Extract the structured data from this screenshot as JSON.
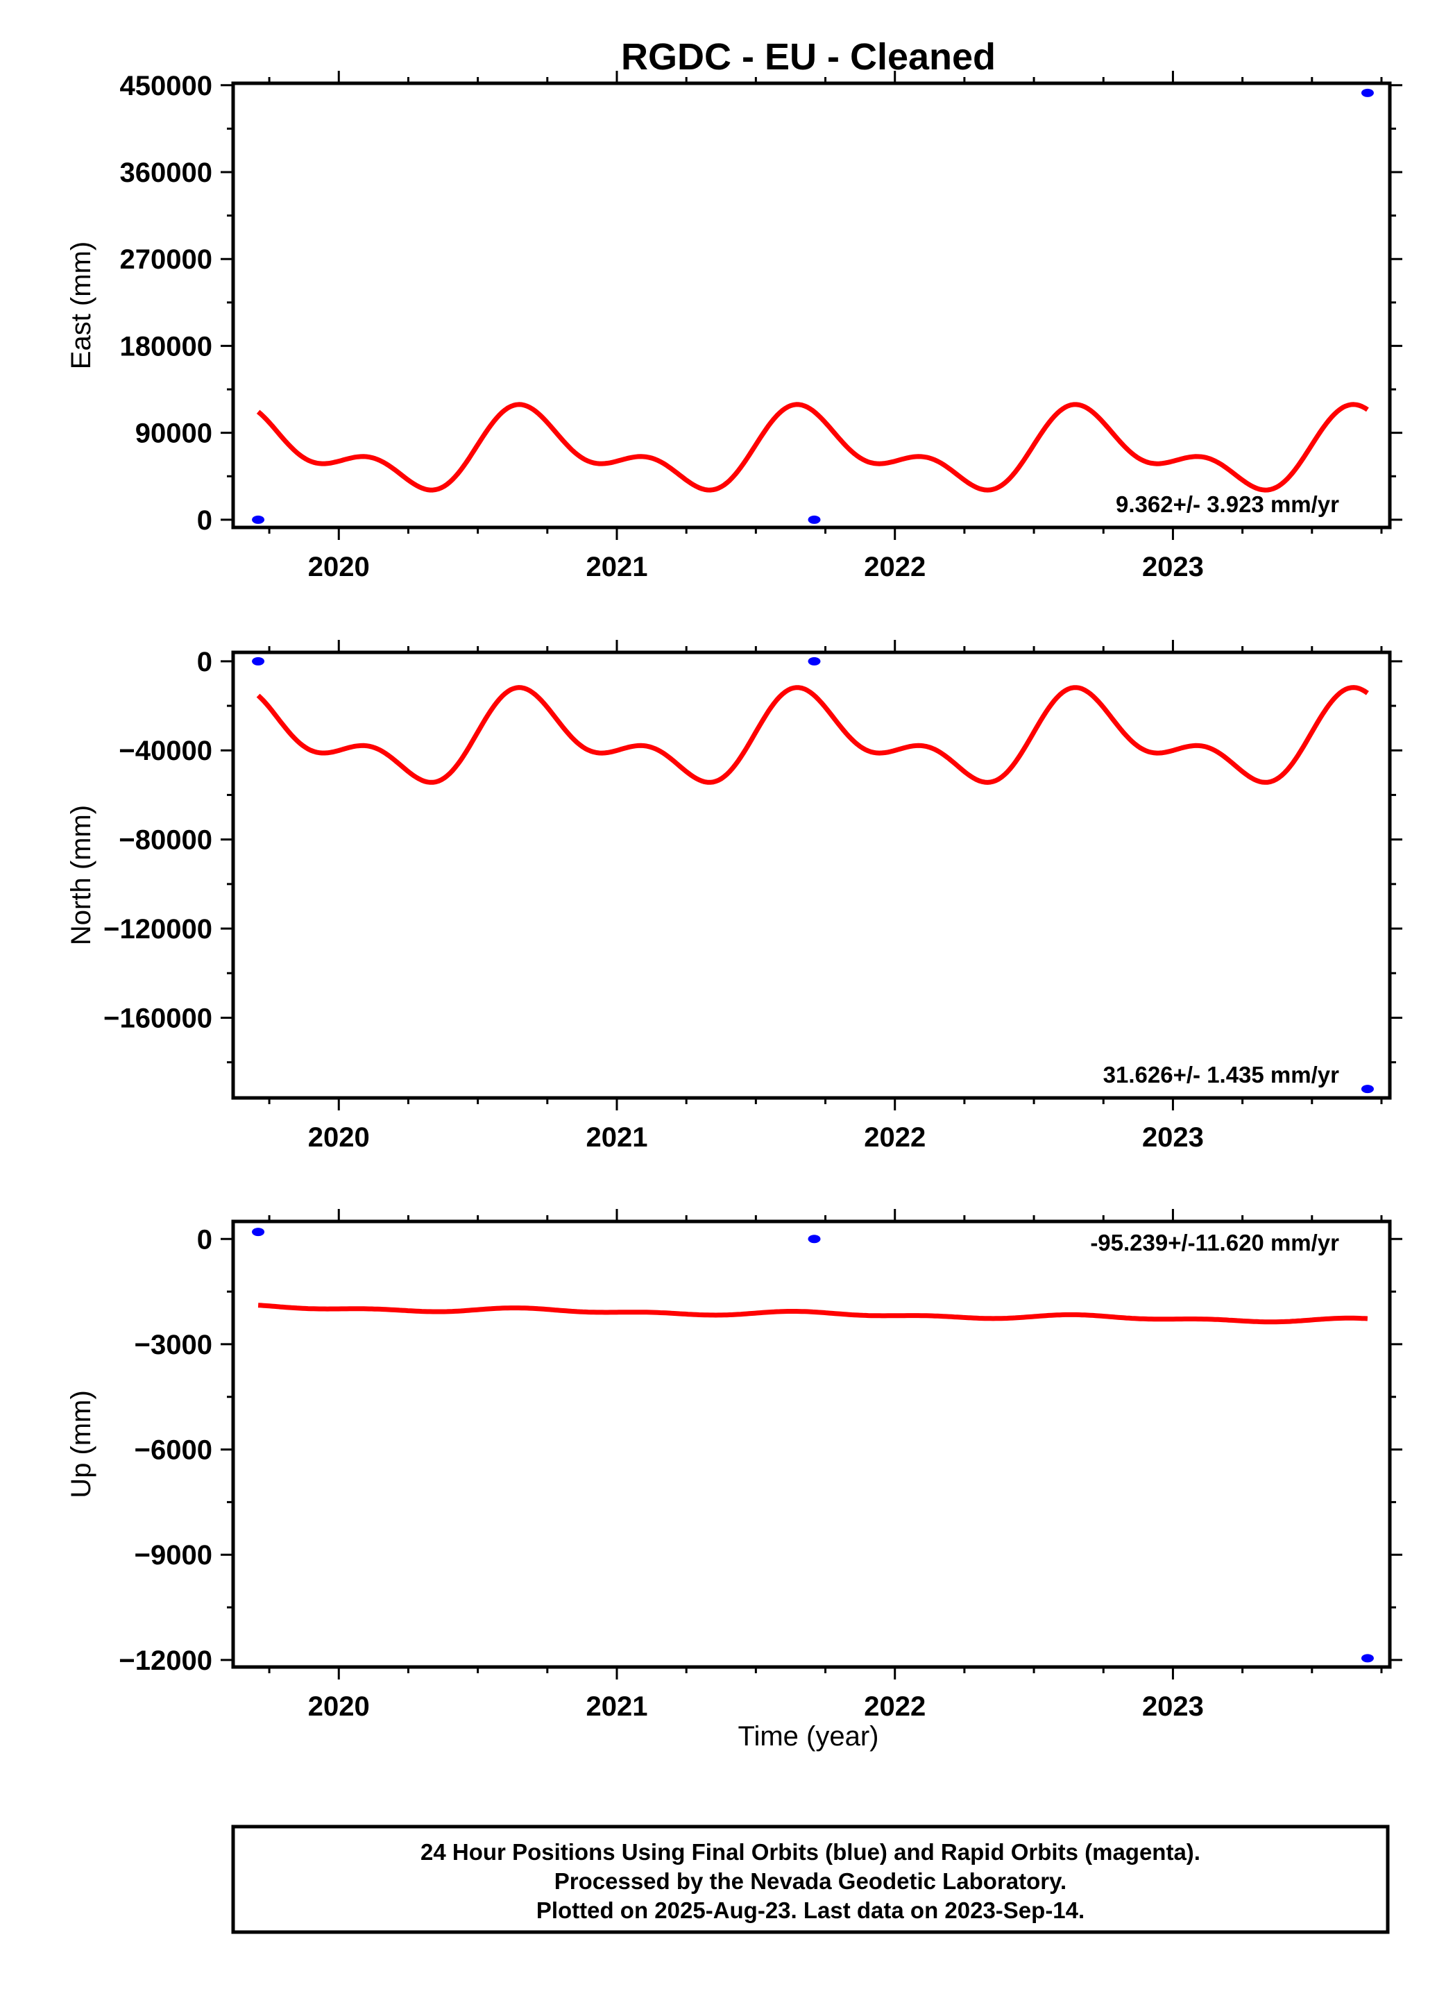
{
  "title": "RGDC  - EU - Cleaned",
  "colors": {
    "model": "#ff0000",
    "final_orbits": "#0000ff",
    "frame": "#000000"
  },
  "x_axis_label": "Time (year)",
  "footer": {
    "line1": "24 Hour Positions Using Final Orbits (blue) and Rapid Orbits (magenta).",
    "line2": "Processed by the Nevada Geodetic Laboratory.",
    "line3": "Plotted on 2025-Aug-23. Last data on 2023-Sep-14."
  },
  "chart_data": [
    {
      "type": "scatter",
      "component": "east",
      "ylabel": "East (mm)",
      "rate_text": "9.362+/- 3.923 mm/yr",
      "xlim": [
        2019.62,
        2023.78
      ],
      "ylim": [
        -8000,
        452000
      ],
      "x_ticks": [
        2020,
        2021,
        2022,
        2023
      ],
      "y_ticks": [
        0,
        90000,
        180000,
        270000,
        360000,
        450000
      ],
      "points": [
        {
          "x": 2019.71,
          "y": 0
        },
        {
          "x": 2021.71,
          "y": 0
        },
        {
          "x": 2023.7,
          "y": 442000
        }
      ],
      "model": {
        "x_start": 2019.71,
        "x_end": 2023.7,
        "offset": 70000,
        "trend": 0,
        "annual": {
          "amp": 31000,
          "phase": 1.6
        },
        "semiannual": {
          "amp": 21000,
          "phase": 2.6
        }
      }
    },
    {
      "type": "scatter",
      "component": "north",
      "ylabel": "North (mm)",
      "rate_text": "31.626+/- 1.435 mm/yr",
      "xlim": [
        2019.62,
        2023.78
      ],
      "ylim": [
        -196000,
        4000
      ],
      "x_ticks": [
        2020,
        2021,
        2022,
        2023
      ],
      "y_ticks": [
        0,
        -40000,
        -80000,
        -120000,
        -160000
      ],
      "points": [
        {
          "x": 2019.71,
          "y": 0
        },
        {
          "x": 2021.71,
          "y": 0
        },
        {
          "x": 2023.7,
          "y": -192000
        }
      ],
      "model": {
        "x_start": 2019.71,
        "x_end": 2023.7,
        "offset": -35500,
        "trend": 0,
        "annual": {
          "amp": 15000,
          "phase": 1.6
        },
        "semiannual": {
          "amp": 10000,
          "phase": 2.6
        }
      }
    },
    {
      "type": "scatter",
      "component": "up",
      "ylabel": "Up (mm)",
      "rate_text": "-95.239+/-11.620 mm/yr",
      "xlim": [
        2019.62,
        2023.78
      ],
      "ylim": [
        -12200,
        500
      ],
      "x_ticks": [
        2020,
        2021,
        2022,
        2023
      ],
      "y_ticks": [
        0,
        -3000,
        -6000,
        -9000,
        -12000
      ],
      "points": [
        {
          "x": 2019.71,
          "y": 200
        },
        {
          "x": 2021.71,
          "y": 0
        },
        {
          "x": 2023.7,
          "y": -11950
        }
      ],
      "model": {
        "x_start": 2019.71,
        "x_end": 2023.7,
        "offset": -1950,
        "trend": -97,
        "annual": {
          "amp": 45,
          "phase": 1.6
        },
        "semiannual": {
          "amp": 35,
          "phase": 2.6
        }
      }
    }
  ]
}
